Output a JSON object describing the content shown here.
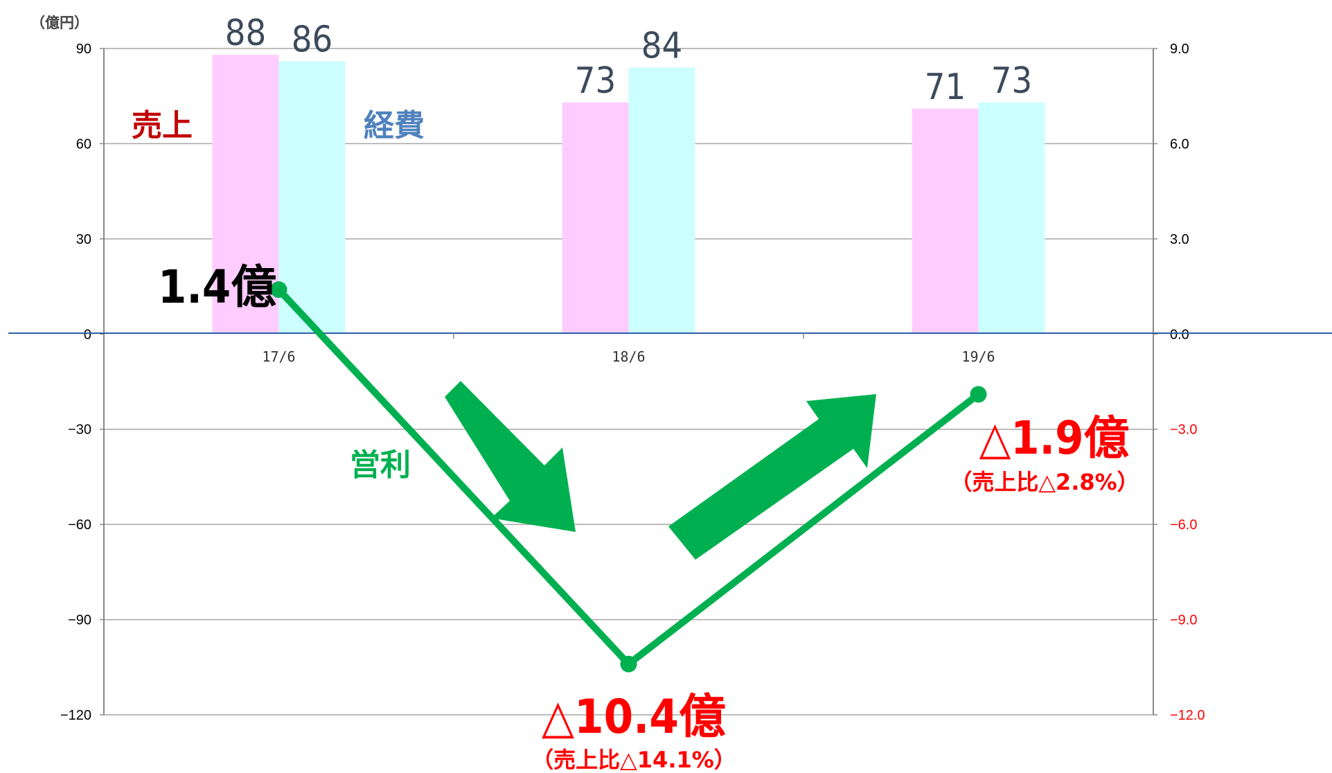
{
  "chart_data": {
    "type": "bar",
    "unit_label": "（億円）",
    "categories": [
      "17/6",
      "18/6",
      "19/6"
    ],
    "series": [
      {
        "name": "売上",
        "axis": "left",
        "type": "bar",
        "values": [
          88,
          73,
          71
        ],
        "color": "#ffccff",
        "label_color": "#c00000",
        "data_labels": [
          "88",
          "73",
          "71"
        ]
      },
      {
        "name": "経費",
        "axis": "left",
        "type": "bar",
        "values": [
          86,
          84,
          73
        ],
        "color": "#ccffff",
        "label_color": "#4f81bd",
        "data_labels": [
          "86",
          "84",
          "73"
        ]
      },
      {
        "name": "営利",
        "axis": "right",
        "type": "line",
        "values": [
          1.4,
          -10.4,
          -1.9
        ],
        "color": "#00b050",
        "label_color": "#00b050"
      }
    ],
    "left_axis": {
      "ylim": [
        -120,
        90
      ],
      "ticks": [
        "90",
        "60",
        "30",
        "0",
        "−30",
        "−60",
        "−90",
        "−120"
      ]
    },
    "right_axis": {
      "ylim": [
        -12.0,
        9.0
      ],
      "ticks": [
        "9.0",
        "6.0",
        "3.0",
        "0.0",
        "−3.0",
        "−6.0",
        "−9.0",
        "−12.0"
      ]
    },
    "grid": true,
    "annotations": {
      "p1": {
        "main": "1.4億",
        "color": "#000000"
      },
      "p2": {
        "main": "△10.4億",
        "sub": "（売上比△14.1%）",
        "color": "#ff0000"
      },
      "p3": {
        "main": "△1.9億",
        "sub": "（売上比△2.8%）",
        "color": "#ff0000"
      }
    },
    "colors": {
      "positive_tick": "#000000",
      "negative_tick_right": "#ff0000",
      "zero_line": "#2e5fa5",
      "grid": "#a6a6a6"
    }
  }
}
